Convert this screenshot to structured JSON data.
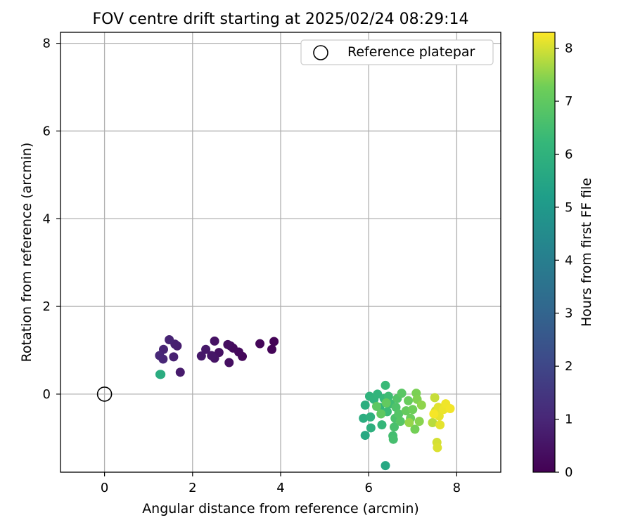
{
  "chart_data": {
    "type": "scatter",
    "title": "FOV centre drift starting at 2025/02/24 08:29:14",
    "xlabel": "Angular distance from reference (arcmin)",
    "ylabel": "Rotation from reference (arcmin)",
    "xlim": [
      -1,
      9
    ],
    "ylim": [
      -1.78,
      8.25
    ],
    "x_ticks": [
      0,
      2,
      4,
      6,
      8
    ],
    "y_ticks": [
      0,
      2,
      4,
      6,
      8
    ],
    "grid": true,
    "legend": {
      "placement": "top-right",
      "entries": [
        "Reference platepar"
      ]
    },
    "colorbar": {
      "label": "Hours from first FF file",
      "range": [
        0,
        8.3
      ],
      "ticks": [
        0,
        1,
        2,
        3,
        4,
        5,
        6,
        7,
        8
      ],
      "colormap": "viridis"
    },
    "reference_point": {
      "x": 0,
      "y": 0
    },
    "points": [
      [
        3.85,
        1.2,
        0.05
      ],
      [
        3.8,
        1.02,
        0.08
      ],
      [
        3.53,
        1.15,
        0.12
      ],
      [
        3.13,
        0.86,
        0.18
      ],
      [
        3.05,
        0.96,
        0.22
      ],
      [
        2.92,
        1.05,
        0.26
      ],
      [
        2.86,
        1.1,
        0.3
      ],
      [
        2.8,
        1.13,
        0.34
      ],
      [
        2.83,
        0.72,
        0.38
      ],
      [
        2.6,
        0.95,
        0.42
      ],
      [
        2.5,
        1.21,
        0.46
      ],
      [
        2.5,
        0.82,
        0.5
      ],
      [
        2.43,
        0.88,
        0.55
      ],
      [
        2.3,
        1.02,
        0.6
      ],
      [
        2.2,
        0.87,
        0.64
      ],
      [
        1.72,
        0.5,
        0.7
      ],
      [
        1.65,
        1.1,
        0.75
      ],
      [
        1.6,
        1.14,
        0.8
      ],
      [
        1.57,
        0.85,
        0.85
      ],
      [
        1.47,
        1.24,
        0.9
      ],
      [
        1.34,
        1.02,
        0.95
      ],
      [
        1.33,
        0.8,
        1.0
      ],
      [
        1.25,
        0.88,
        1.05
      ],
      [
        1.26,
        0.45,
        5.7
      ],
      [
        1.28,
        0.45,
        5.75
      ],
      [
        6.38,
        -1.63,
        5.6
      ],
      [
        5.92,
        -0.94,
        5.62
      ],
      [
        5.88,
        -0.55,
        5.8
      ],
      [
        5.92,
        -0.25,
        5.85
      ],
      [
        6.05,
        -0.77,
        5.9
      ],
      [
        6.04,
        -0.52,
        5.95
      ],
      [
        6.02,
        -0.05,
        6.0
      ],
      [
        6.12,
        -0.12,
        6.05
      ],
      [
        6.2,
        0.0,
        6.1
      ],
      [
        6.25,
        -0.3,
        6.15
      ],
      [
        6.3,
        -0.7,
        6.2
      ],
      [
        6.35,
        -0.1,
        6.25
      ],
      [
        6.38,
        0.2,
        6.3
      ],
      [
        6.42,
        -0.4,
        6.35
      ],
      [
        6.45,
        -0.05,
        6.4
      ],
      [
        6.5,
        -0.22,
        6.45
      ],
      [
        6.55,
        -0.95,
        6.5
      ],
      [
        6.56,
        -1.03,
        6.55
      ],
      [
        6.58,
        -0.75,
        6.6
      ],
      [
        6.6,
        -0.55,
        6.65
      ],
      [
        6.62,
        -0.3,
        6.7
      ],
      [
        6.65,
        -0.1,
        6.75
      ],
      [
        6.68,
        -0.45,
        6.8
      ],
      [
        6.72,
        -0.62,
        6.85
      ],
      [
        6.75,
        0.02,
        6.9
      ],
      [
        6.18,
        -0.28,
        6.95
      ],
      [
        6.28,
        -0.45,
        7.0
      ],
      [
        6.4,
        -0.2,
        7.05
      ],
      [
        6.85,
        -0.38,
        7.1
      ],
      [
        6.9,
        -0.15,
        7.15
      ],
      [
        6.95,
        -0.55,
        7.2
      ],
      [
        7.0,
        -0.35,
        7.25
      ],
      [
        7.05,
        -0.8,
        7.3
      ],
      [
        7.08,
        0.02,
        7.35
      ],
      [
        7.1,
        -0.12,
        7.4
      ],
      [
        7.15,
        -0.62,
        7.45
      ],
      [
        7.2,
        -0.25,
        7.5
      ],
      [
        6.92,
        -0.65,
        7.55
      ],
      [
        7.45,
        -0.65,
        7.8
      ],
      [
        7.5,
        -0.08,
        7.9
      ],
      [
        7.52,
        -0.38,
        7.95
      ],
      [
        7.55,
        -1.1,
        8.0
      ],
      [
        7.56,
        -1.22,
        8.05
      ],
      [
        7.58,
        -0.3,
        8.1
      ],
      [
        7.62,
        -0.7,
        8.12
      ],
      [
        7.6,
        -0.5,
        8.15
      ],
      [
        7.7,
        -0.35,
        8.18
      ],
      [
        7.75,
        -0.22,
        8.2
      ],
      [
        7.85,
        -0.33,
        8.22
      ],
      [
        7.48,
        -0.45,
        8.25
      ]
    ]
  }
}
